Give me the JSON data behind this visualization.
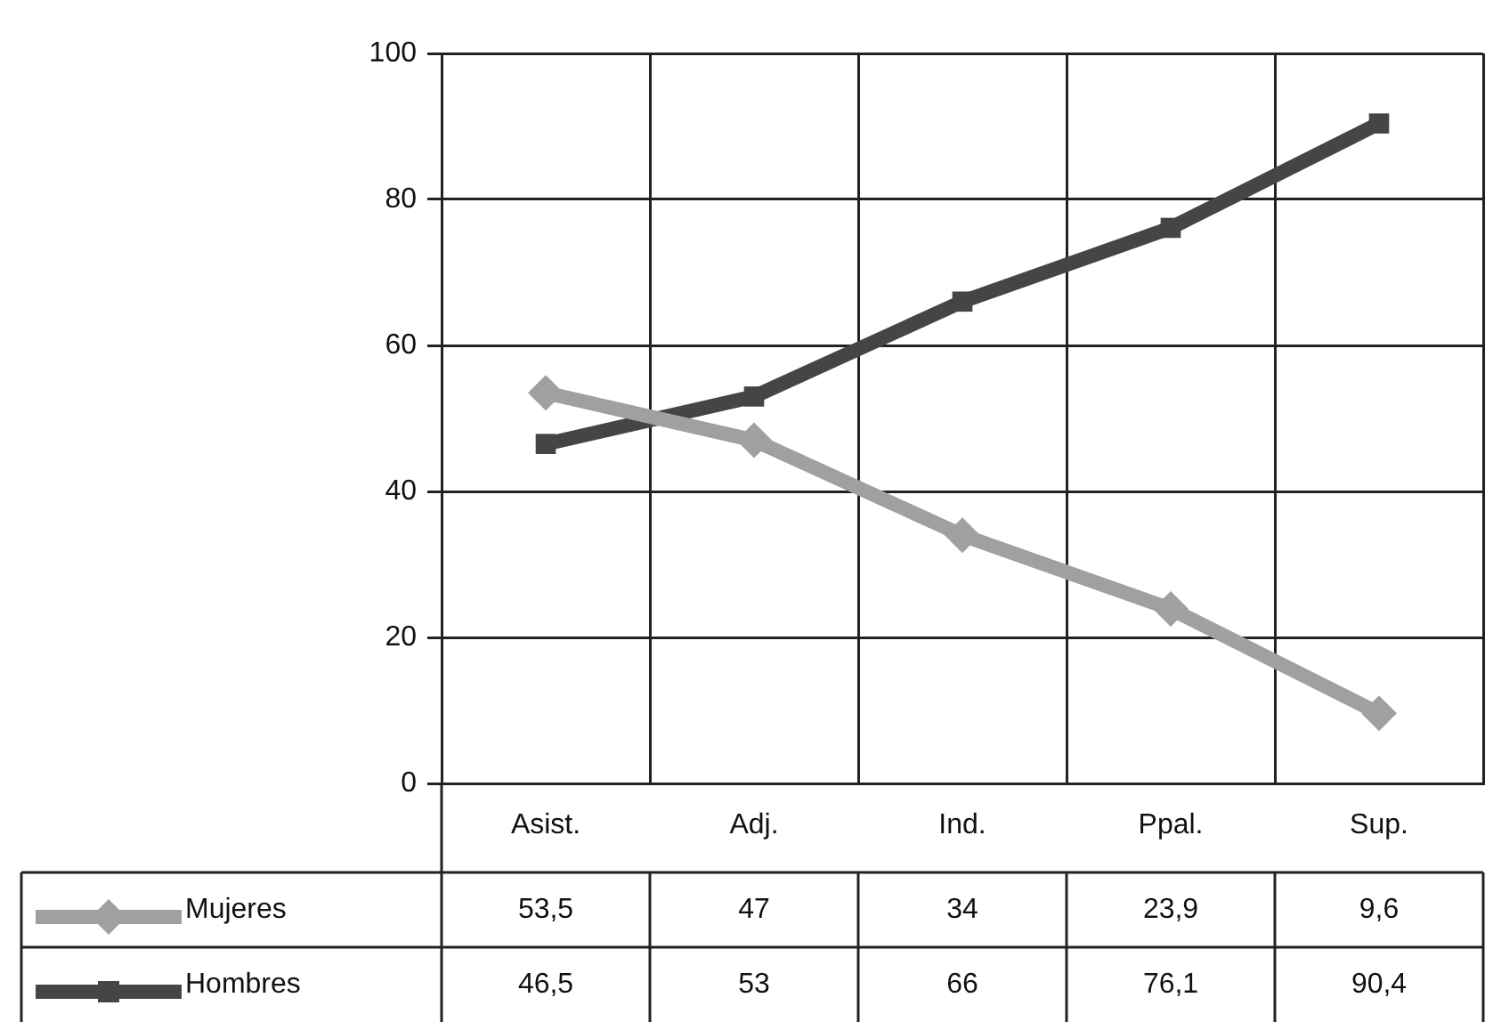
{
  "chart_data": {
    "type": "line",
    "categories": [
      "Asist.",
      "Adj.",
      "Ind.",
      "Ppal.",
      "Sup."
    ],
    "series": [
      {
        "name": "Mujeres",
        "color": "#a0a0a0",
        "marker": "diamond",
        "values": [
          53.5,
          47,
          34,
          23.9,
          9.6
        ],
        "value_labels": [
          "53,5",
          "47",
          "34",
          "23,9",
          "9,6"
        ]
      },
      {
        "name": "Hombres",
        "color": "#454545",
        "marker": "square",
        "values": [
          46.5,
          53,
          66,
          76.1,
          90.4
        ],
        "value_labels": [
          "46,5",
          "53",
          "66",
          "76,1",
          "90,4"
        ]
      }
    ],
    "ylim": [
      0,
      100
    ],
    "yticks": [
      0,
      20,
      40,
      60,
      80,
      100
    ],
    "grid": true,
    "legend": "bottom left"
  }
}
